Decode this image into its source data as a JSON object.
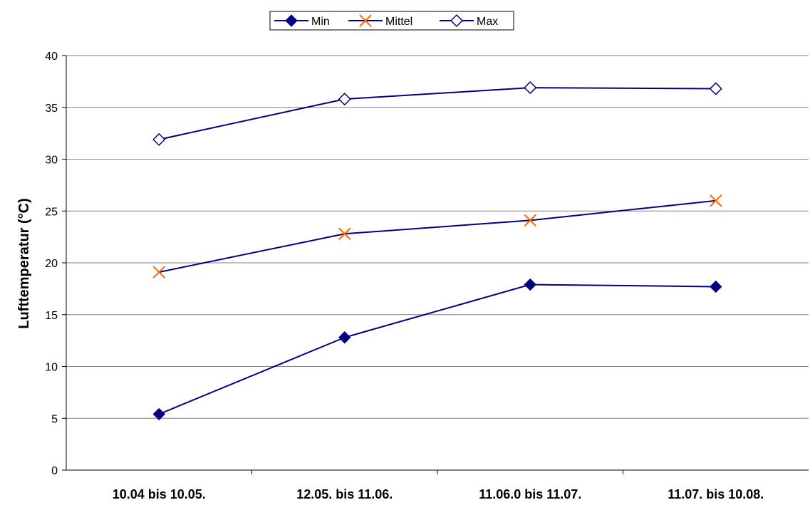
{
  "chart_data": {
    "type": "line",
    "categories": [
      "10.04 bis 10.05.",
      "12.05. bis 11.06.",
      "11.06.0 bis 11.07.",
      "11.07. bis 10.08."
    ],
    "series": [
      {
        "name": "Min",
        "values": [
          5.4,
          12.8,
          17.9,
          17.7
        ],
        "color": "#000080",
        "marker": "diamond-filled"
      },
      {
        "name": "Mittel",
        "values": [
          19.1,
          22.8,
          24.1,
          26.0
        ],
        "color": "#000080",
        "marker_color": "#FF6600",
        "marker": "x"
      },
      {
        "name": "Max",
        "values": [
          31.9,
          35.8,
          36.9,
          36.8
        ],
        "color": "#000080",
        "marker": "diamond-open"
      }
    ],
    "ylabel": "Lufttemperatur (°C)",
    "xlabel": "",
    "ylim": [
      0,
      40
    ],
    "yticks": [
      "0",
      "5",
      "10",
      "15",
      "20",
      "25",
      "30",
      "35",
      "40"
    ],
    "grid": "horizontal",
    "legend": "top"
  }
}
